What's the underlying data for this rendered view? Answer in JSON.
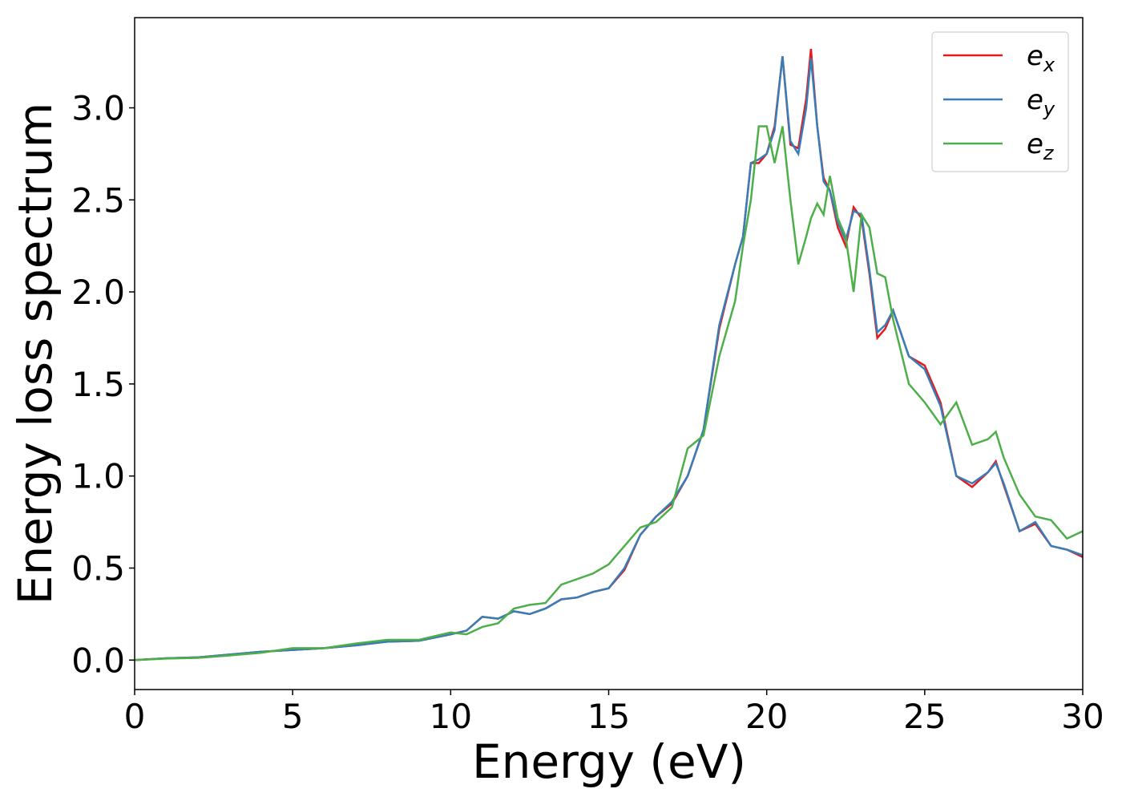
{
  "chart_data": {
    "type": "line",
    "xlabel": "Energy (eV)",
    "ylabel": "Energy loss spectrum",
    "x": [
      0,
      1,
      2,
      3,
      4,
      5,
      6,
      7,
      8,
      9,
      10,
      10.5,
      11,
      11.5,
      12,
      12.5,
      13,
      13.5,
      14,
      14.5,
      15,
      15.5,
      16,
      16.5,
      17,
      17.5,
      18,
      18.5,
      19,
      19.25,
      19.5,
      19.75,
      20,
      20.25,
      20.5,
      20.75,
      21,
      21.25,
      21.4,
      21.6,
      21.8,
      22,
      22.25,
      22.5,
      22.75,
      23,
      23.25,
      23.5,
      23.75,
      24,
      24.5,
      25,
      25.5,
      26,
      26.5,
      27,
      27.25,
      27.5,
      28,
      28.5,
      29,
      29.5,
      30
    ],
    "series": [
      {
        "name": "ex",
        "color": "#e41a1c",
        "values": [
          0,
          0.01,
          0.015,
          0.03,
          0.045,
          0.055,
          0.065,
          0.08,
          0.1,
          0.105,
          0.14,
          0.16,
          0.235,
          0.225,
          0.265,
          0.25,
          0.28,
          0.33,
          0.34,
          0.37,
          0.39,
          0.49,
          0.68,
          0.78,
          0.85,
          1.0,
          1.25,
          1.8,
          2.15,
          2.3,
          2.7,
          2.7,
          2.75,
          2.9,
          3.28,
          2.8,
          2.78,
          3.05,
          3.32,
          2.9,
          2.62,
          2.55,
          2.35,
          2.25,
          2.46,
          2.4,
          2.1,
          1.75,
          1.8,
          1.9,
          1.65,
          1.6,
          1.4,
          1.0,
          0.94,
          1.02,
          1.08,
          0.95,
          0.7,
          0.74,
          0.62,
          0.6,
          0.56
        ]
      },
      {
        "name": "ey",
        "color": "#377eb8",
        "values": [
          0,
          0.01,
          0.015,
          0.03,
          0.045,
          0.055,
          0.065,
          0.08,
          0.1,
          0.105,
          0.14,
          0.16,
          0.235,
          0.225,
          0.265,
          0.25,
          0.28,
          0.33,
          0.34,
          0.37,
          0.39,
          0.5,
          0.68,
          0.78,
          0.86,
          1.0,
          1.25,
          1.82,
          2.15,
          2.3,
          2.7,
          2.72,
          2.75,
          2.88,
          3.28,
          2.82,
          2.75,
          3.0,
          3.27,
          2.9,
          2.6,
          2.55,
          2.38,
          2.28,
          2.44,
          2.42,
          2.12,
          1.78,
          1.82,
          1.9,
          1.65,
          1.58,
          1.38,
          1.0,
          0.96,
          1.02,
          1.07,
          0.96,
          0.7,
          0.75,
          0.62,
          0.6,
          0.57
        ]
      },
      {
        "name": "ez",
        "color": "#4daf4a",
        "values": [
          0,
          0.008,
          0.012,
          0.025,
          0.04,
          0.065,
          0.065,
          0.09,
          0.11,
          0.11,
          0.15,
          0.14,
          0.18,
          0.2,
          0.28,
          0.3,
          0.31,
          0.41,
          0.44,
          0.47,
          0.52,
          0.62,
          0.72,
          0.75,
          0.83,
          1.15,
          1.22,
          1.65,
          1.95,
          2.25,
          2.5,
          2.9,
          2.9,
          2.7,
          2.9,
          2.5,
          2.15,
          2.3,
          2.4,
          2.48,
          2.42,
          2.63,
          2.4,
          2.3,
          2.0,
          2.42,
          2.35,
          2.1,
          2.08,
          1.85,
          1.5,
          1.4,
          1.28,
          1.4,
          1.17,
          1.2,
          1.24,
          1.1,
          0.9,
          0.78,
          0.76,
          0.66,
          0.7
        ]
      }
    ],
    "xlim": [
      0,
      30
    ],
    "xticks": [
      0,
      5,
      10,
      15,
      20,
      25,
      30
    ],
    "ylim": [
      -0.16,
      3.49
    ],
    "yticks": [
      {
        "value": 0,
        "label": "0.0"
      },
      0.5,
      {
        "value": 1,
        "label": "1.0"
      },
      1.5,
      {
        "value": 2,
        "label": "2.0"
      },
      2.5,
      {
        "value": 3,
        "label": "3.0"
      }
    ],
    "legend": "upper right",
    "grid": false
  }
}
